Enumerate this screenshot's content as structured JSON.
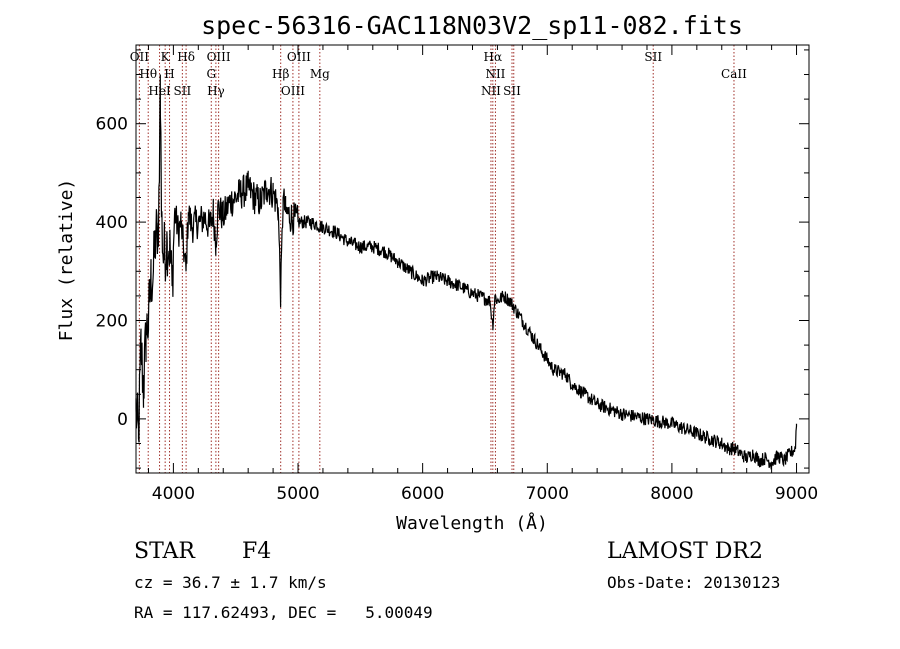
{
  "chart_data": {
    "type": "line",
    "title": "spec-56316-GAC118N03V2_sp11-082.fits",
    "xlabel": "Wavelength (Å)",
    "ylabel": "Flux (relative)",
    "xlim": [
      3700,
      9100
    ],
    "ylim": [
      -110,
      760
    ],
    "x_ticks": [
      4000,
      5000,
      6000,
      7000,
      8000,
      9000
    ],
    "x_tick_labels": [
      "4000",
      "5000",
      "6000",
      "7000",
      "8000",
      "9000"
    ],
    "y_ticks": [
      0,
      200,
      400,
      600
    ],
    "y_tick_labels": [
      "0",
      "200",
      "400",
      "600"
    ],
    "grid": false,
    "series": [
      {
        "x": [
          3700,
          3720,
          3740,
          3760,
          3780,
          3800,
          3820,
          3840,
          3860,
          3880,
          3895,
          3905,
          3920,
          3950,
          3970,
          3990,
          4010,
          4040,
          4060,
          4080,
          4101,
          4120,
          4150,
          4180,
          4210,
          4250,
          4290,
          4320,
          4340,
          4360,
          4400,
          4450,
          4500,
          4550,
          4600,
          4650,
          4700,
          4750,
          4800,
          4840,
          4861,
          4880,
          4900,
          4950,
          5000,
          5100,
          5200,
          5300,
          5400,
          5500,
          5600,
          5700,
          5800,
          5900,
          6000,
          6100,
          6200,
          6300,
          6400,
          6450,
          6500,
          6540,
          6563,
          6580,
          6600,
          6650,
          6700,
          6750,
          6800,
          6850,
          6900,
          6950,
          7000,
          7050,
          7100,
          7150,
          7200,
          7300,
          7400,
          7500,
          7600,
          7700,
          7800,
          7900,
          8000,
          8100,
          8200,
          8300,
          8400,
          8450,
          8500,
          8550,
          8600,
          8650,
          8700,
          8750,
          8800,
          8850,
          8900,
          8950,
          8990,
          9000
        ],
        "y": [
          20,
          -40,
          150,
          60,
          170,
          200,
          280,
          300,
          380,
          350,
          700,
          410,
          330,
          360,
          350,
          270,
          420,
          380,
          400,
          350,
          300,
          420,
          390,
          400,
          400,
          410,
          390,
          420,
          360,
          430,
          410,
          440,
          450,
          460,
          470,
          450,
          440,
          470,
          460,
          430,
          250,
          450,
          420,
          410,
          400,
          400,
          390,
          380,
          360,
          350,
          350,
          340,
          320,
          300,
          280,
          290,
          280,
          270,
          255,
          250,
          245,
          240,
          190,
          250,
          240,
          250,
          240,
          220,
          200,
          180,
          160,
          140,
          120,
          100,
          95,
          90,
          70,
          50,
          30,
          20,
          10,
          5,
          0,
          -5,
          -10,
          -20,
          -30,
          -40,
          -50,
          -60,
          -60,
          -70,
          -80,
          -70,
          -85,
          -80,
          -90,
          -75,
          -85,
          -70,
          -60,
          -10
        ]
      }
    ],
    "lines": [
      {
        "x": 3727,
        "labels": [
          "OII"
        ]
      },
      {
        "x": 3798,
        "labels": [
          "Hθ"
        ]
      },
      {
        "x": 3889,
        "labels": [
          "HeI"
        ]
      },
      {
        "x": 3934,
        "labels": [
          "K"
        ]
      },
      {
        "x": 3969,
        "labels": [
          "H"
        ]
      },
      {
        "x": 4072,
        "labels": [
          "SII"
        ]
      },
      {
        "x": 4102,
        "labels": [
          "Hδ"
        ]
      },
      {
        "x": 4304,
        "labels": [
          "G"
        ]
      },
      {
        "x": 4341,
        "labels": [
          "Hγ"
        ]
      },
      {
        "x": 4363,
        "labels": [
          "OIII"
        ]
      },
      {
        "x": 4861,
        "labels": [
          "Hβ"
        ]
      },
      {
        "x": 4959,
        "labels": [
          "OIII"
        ]
      },
      {
        "x": 5007,
        "labels": [
          "OIII"
        ]
      },
      {
        "x": 5175,
        "labels": [
          "Mg"
        ]
      },
      {
        "x": 6548,
        "labels": [
          "NII"
        ]
      },
      {
        "x": 6563,
        "labels": [
          "Hα"
        ]
      },
      {
        "x": 6584,
        "labels": [
          "NII"
        ]
      },
      {
        "x": 6717,
        "labels": [
          "SII"
        ]
      },
      {
        "x": 6731,
        "labels": []
      },
      {
        "x": 7850,
        "labels": [
          "SII"
        ]
      },
      {
        "x": 8498,
        "labels": [
          "CaII"
        ]
      }
    ]
  },
  "footer": {
    "object_class": "STAR",
    "subclass": "F4",
    "survey": "LAMOST DR2",
    "cz": "cz = 36.7 ± 1.7 km/s",
    "obs_date": "Obs-Date: 20130123",
    "coords": "RA = 117.62493, DEC =   5.00049"
  },
  "colors": {
    "line": "#000000",
    "marker": "#a0302a"
  }
}
